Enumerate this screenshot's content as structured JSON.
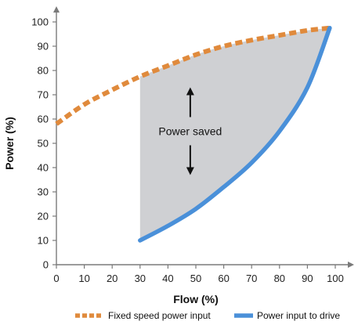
{
  "chart_data": {
    "type": "line",
    "title": "",
    "xlabel": "Flow (%)",
    "ylabel": "Power (%)",
    "xlim": [
      0,
      100
    ],
    "ylim": [
      0,
      100
    ],
    "x_ticks": [
      0,
      10,
      20,
      30,
      40,
      50,
      60,
      70,
      80,
      90,
      100
    ],
    "y_ticks": [
      0,
      10,
      20,
      30,
      40,
      50,
      60,
      70,
      80,
      90,
      100
    ],
    "grid": false,
    "legend_position": "bottom",
    "series": [
      {
        "name": "Fixed speed power input",
        "color": "#e08a3c",
        "style": "dashed",
        "x": [
          0,
          10,
          20,
          30,
          40,
          50,
          60,
          70,
          80,
          90,
          98
        ],
        "y": [
          58,
          66,
          72,
          77.5,
          82,
          86.5,
          90,
          92.5,
          94.5,
          96.5,
          97.5
        ]
      },
      {
        "name": "Power input to drive",
        "color": "#4a90d9",
        "style": "solid",
        "x": [
          30,
          40,
          50,
          60,
          70,
          80,
          90,
          98
        ],
        "y": [
          10,
          16,
          23,
          32,
          42,
          55,
          73,
          97.5
        ]
      }
    ],
    "shaded_region": {
      "label": "Power saved",
      "x_from": 30,
      "x_to": 98,
      "color": "#cfd0d3"
    },
    "annotations": [
      {
        "text": "Power saved",
        "x": 48,
        "y": 55
      }
    ]
  }
}
